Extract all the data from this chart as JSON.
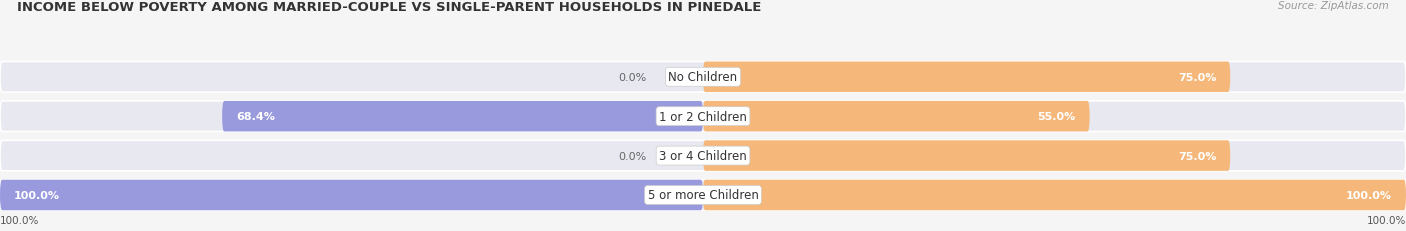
{
  "title": "INCOME BELOW POVERTY AMONG MARRIED-COUPLE VS SINGLE-PARENT HOUSEHOLDS IN PINEDALE",
  "source": "Source: ZipAtlas.com",
  "categories": [
    "No Children",
    "1 or 2 Children",
    "3 or 4 Children",
    "5 or more Children"
  ],
  "married_values": [
    0.0,
    68.4,
    0.0,
    100.0
  ],
  "single_values": [
    75.0,
    55.0,
    75.0,
    100.0
  ],
  "married_color": "#9999dd",
  "single_color": "#f5b87a",
  "bar_bg_color_left": "#dcdcee",
  "bar_bg_color_right": "#f5dfc0",
  "background_color": "#f5f5f5",
  "title_fontsize": 9.5,
  "source_fontsize": 7.5,
  "label_fontsize": 8,
  "cat_fontsize": 8.5,
  "axis_max": 100.0,
  "axis_label": "100.0%"
}
